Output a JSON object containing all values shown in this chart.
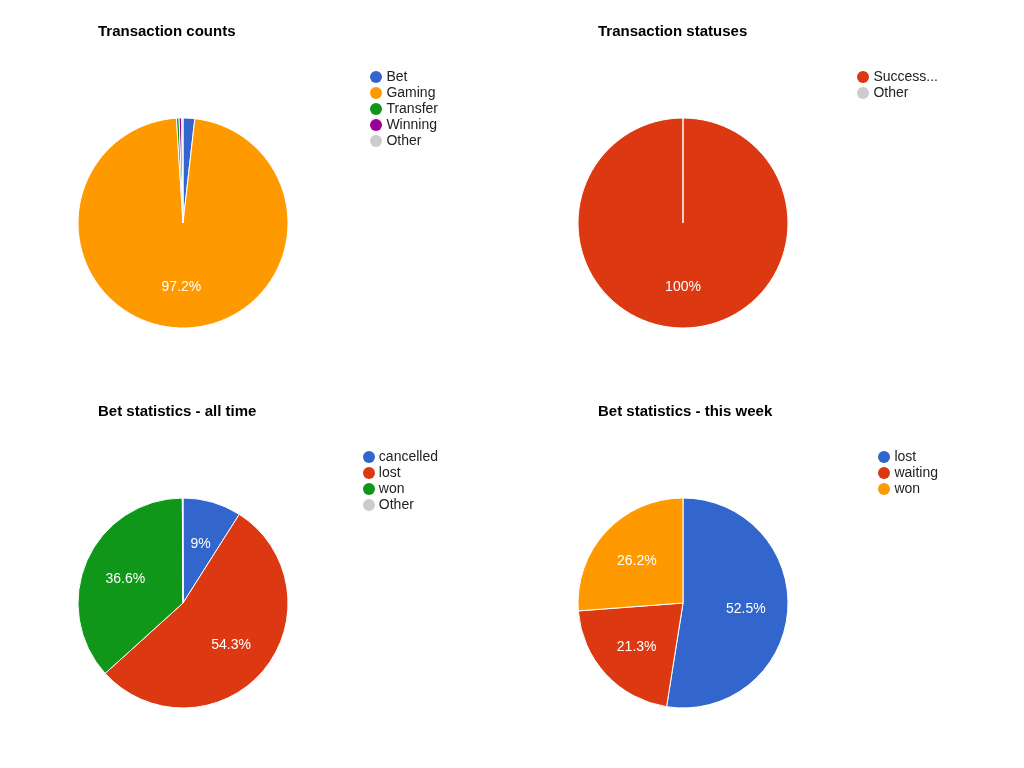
{
  "chart_data": [
    {
      "type": "pie",
      "title": "Transaction counts",
      "categories": [
        "Bet",
        "Gaming",
        "Transfer",
        "Winning",
        "Other"
      ],
      "values": [
        1.8,
        97.2,
        0.4,
        0.4,
        0.2
      ],
      "colors": [
        "#3366cc",
        "#ff9900",
        "#109618",
        "#990099",
        "#cccccc"
      ],
      "value_labels": [
        null,
        "97.2%",
        null,
        null,
        null
      ],
      "legend": "right"
    },
    {
      "type": "pie",
      "title": "Transaction statuses",
      "categories": [
        "Success...",
        "Other"
      ],
      "values": [
        100,
        0
      ],
      "colors": [
        "#dc3912",
        "#cccccc"
      ],
      "value_labels": [
        "100%",
        null
      ],
      "legend": "right"
    },
    {
      "type": "pie",
      "title": "Bet statistics - all time",
      "categories": [
        "cancelled",
        "lost",
        "won",
        "Other"
      ],
      "values": [
        9,
        54.3,
        36.6,
        0.1
      ],
      "colors": [
        "#3366cc",
        "#dc3912",
        "#109618",
        "#cccccc"
      ],
      "value_labels": [
        "9%",
        "54.3%",
        "36.6%",
        null
      ],
      "legend": "right"
    },
    {
      "type": "pie",
      "title": "Bet statistics - this week",
      "categories": [
        "lost",
        "waiting",
        "won"
      ],
      "values": [
        52.5,
        21.3,
        26.2
      ],
      "colors": [
        "#3366cc",
        "#dc3912",
        "#ff9900"
      ],
      "value_labels": [
        "52.5%",
        "21.3%",
        "26.2%"
      ],
      "legend": "right"
    }
  ]
}
